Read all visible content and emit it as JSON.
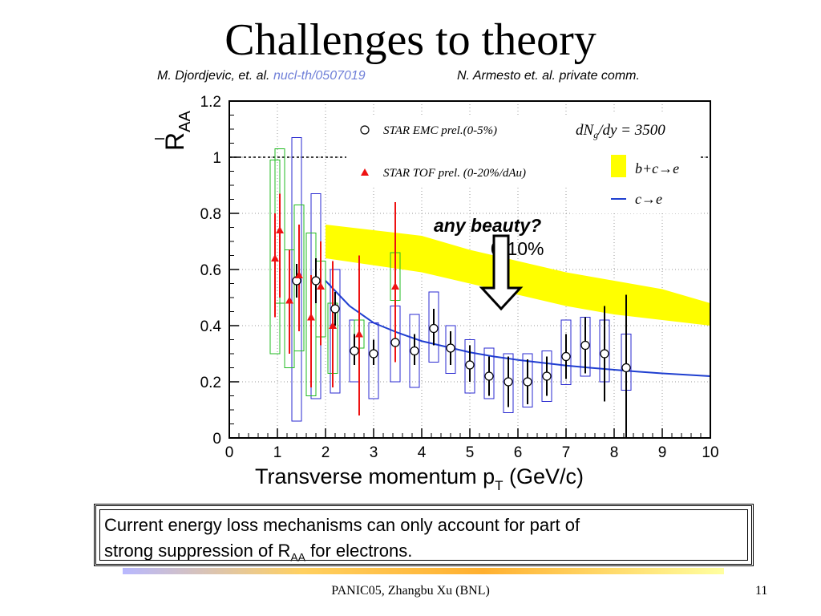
{
  "slide": {
    "title": "Challenges to theory",
    "ref_left_prefix": "M. Djordjevic, et. al.",
    "ref_left_link": "nucl-th/0507019",
    "ref_right": "N. Armesto et. al. private comm.",
    "callout_line1": "Current energy loss mechanisms can only account for part of",
    "callout_line2_prefix": "strong suppression of R",
    "callout_line2_sub": "AA",
    "callout_line2_suffix": " for electrons.",
    "footer": "PANIC05,  Zhangbu Xu (BNL)",
    "page_number": "11"
  },
  "chart_data": {
    "type": "scatter",
    "xlim": [
      0,
      10
    ],
    "ylim": [
      0,
      1.2
    ],
    "x_ticks": [
      "0",
      "1",
      "2",
      "3",
      "4",
      "5",
      "6",
      "7",
      "8",
      "9",
      "10"
    ],
    "y_ticks": [
      "0",
      "0.2",
      "0.4",
      "0.6",
      "0.8",
      "1",
      "1.2"
    ],
    "x_tick_values": [
      0,
      1,
      2,
      3,
      4,
      5,
      6,
      7,
      8,
      9,
      10
    ],
    "y_tick_values": [
      0,
      0.2,
      0.4,
      0.6,
      0.8,
      1.0,
      1.2
    ],
    "xlabel": "Transverse momentum p",
    "xlabel_sub": "T",
    "xlabel_suffix": " (GeV/c)",
    "ylabel": "R",
    "ylabel_sub": "AA",
    "grid": true,
    "reference_line": 1.0,
    "annotations": {
      "dndy": "dN",
      "dndy_sub": "g",
      "dndy_suffix": "/dy = 3500",
      "any_beauty": "any beauty?",
      "centrality": "0-10%"
    },
    "legend": {
      "emc": "STAR EMC prel.(0-5%)",
      "tof": "STAR TOF prel. (0-20%/dAu)",
      "bc": "b+c→e",
      "c": "c→e"
    },
    "colors": {
      "emc_box": "#2a2ad0",
      "tof_box": "#22bb22",
      "tof_marker": "#ee1111",
      "band": "#ffff00",
      "curve": "#1f3fd0"
    },
    "series": [
      {
        "name": "STAR EMC prel.(0-5%)",
        "x": [
          1.4,
          1.8,
          2.2,
          2.6,
          3.0,
          3.45,
          3.85,
          4.25,
          4.6,
          5.0,
          5.4,
          5.8,
          6.2,
          6.6,
          7.0,
          7.4,
          7.8,
          8.25
        ],
        "y": [
          0.56,
          0.56,
          0.46,
          0.31,
          0.3,
          0.34,
          0.31,
          0.39,
          0.32,
          0.26,
          0.22,
          0.2,
          0.2,
          0.22,
          0.29,
          0.33,
          0.3,
          0.25
        ],
        "stat_low": [
          0.5,
          0.48,
          0.4,
          0.26,
          0.26,
          0.28,
          0.26,
          0.33,
          0.26,
          0.2,
          0.15,
          0.11,
          0.12,
          0.15,
          0.21,
          0.23,
          0.13,
          0.0
        ],
        "stat_high": [
          0.62,
          0.64,
          0.52,
          0.37,
          0.35,
          0.4,
          0.37,
          0.46,
          0.38,
          0.33,
          0.29,
          0.29,
          0.28,
          0.29,
          0.37,
          0.43,
          0.47,
          0.51
        ],
        "sys_low": [
          0.06,
          0.14,
          0.16,
          0.2,
          0.14,
          0.2,
          0.18,
          0.27,
          0.23,
          0.16,
          0.14,
          0.09,
          0.11,
          0.13,
          0.19,
          0.22,
          0.2,
          0.17
        ],
        "sys_high": [
          1.07,
          0.87,
          0.6,
          0.42,
          0.41,
          0.47,
          0.44,
          0.52,
          0.4,
          0.35,
          0.32,
          0.3,
          0.3,
          0.31,
          0.42,
          0.43,
          0.42,
          0.37
        ]
      },
      {
        "name": "STAR TOF prel. (0-20%/dAu)",
        "x": [
          0.95,
          1.05,
          1.25,
          1.45,
          1.7,
          1.9,
          2.15,
          2.7,
          3.45
        ],
        "y": [
          0.64,
          0.74,
          0.49,
          0.58,
          0.43,
          0.54,
          0.4,
          0.37,
          0.54
        ],
        "stat_low": [
          0.43,
          0.5,
          0.3,
          0.38,
          0.18,
          0.33,
          0.18,
          0.08,
          0.27
        ],
        "stat_high": [
          0.8,
          0.87,
          0.67,
          0.76,
          0.58,
          0.7,
          0.63,
          0.65,
          0.84
        ],
        "sys_low": [
          0.3,
          0.48,
          0.25,
          0.31,
          0.15,
          0.36,
          0.23,
          0.32,
          0.49
        ],
        "sys_high": [
          0.99,
          1.03,
          0.67,
          0.83,
          0.73,
          0.63,
          0.48,
          0.42,
          0.66
        ]
      }
    ],
    "band_bc": {
      "name": "b+c→e",
      "x": [
        2.0,
        4.0,
        5.0,
        6.0,
        7.0,
        8.0,
        9.0,
        10.0
      ],
      "y_low": [
        0.64,
        0.59,
        0.55,
        0.51,
        0.47,
        0.44,
        0.42,
        0.4
      ],
      "y_high": [
        0.76,
        0.72,
        0.67,
        0.63,
        0.59,
        0.56,
        0.53,
        0.48
      ]
    },
    "curve_c": {
      "name": "c→e",
      "x": [
        2.0,
        2.5,
        3.0,
        3.5,
        4.0,
        4.5,
        5.0,
        5.5,
        6.0,
        6.5,
        7.0,
        7.5,
        8.0,
        8.5,
        9.0,
        9.5,
        10.0
      ],
      "y": [
        0.56,
        0.47,
        0.41,
        0.375,
        0.345,
        0.325,
        0.305,
        0.29,
        0.278,
        0.268,
        0.258,
        0.25,
        0.243,
        0.236,
        0.23,
        0.225,
        0.22
      ]
    },
    "arrow": {
      "x": 5.65,
      "y_top": 0.72,
      "y_bottom": 0.46
    }
  }
}
